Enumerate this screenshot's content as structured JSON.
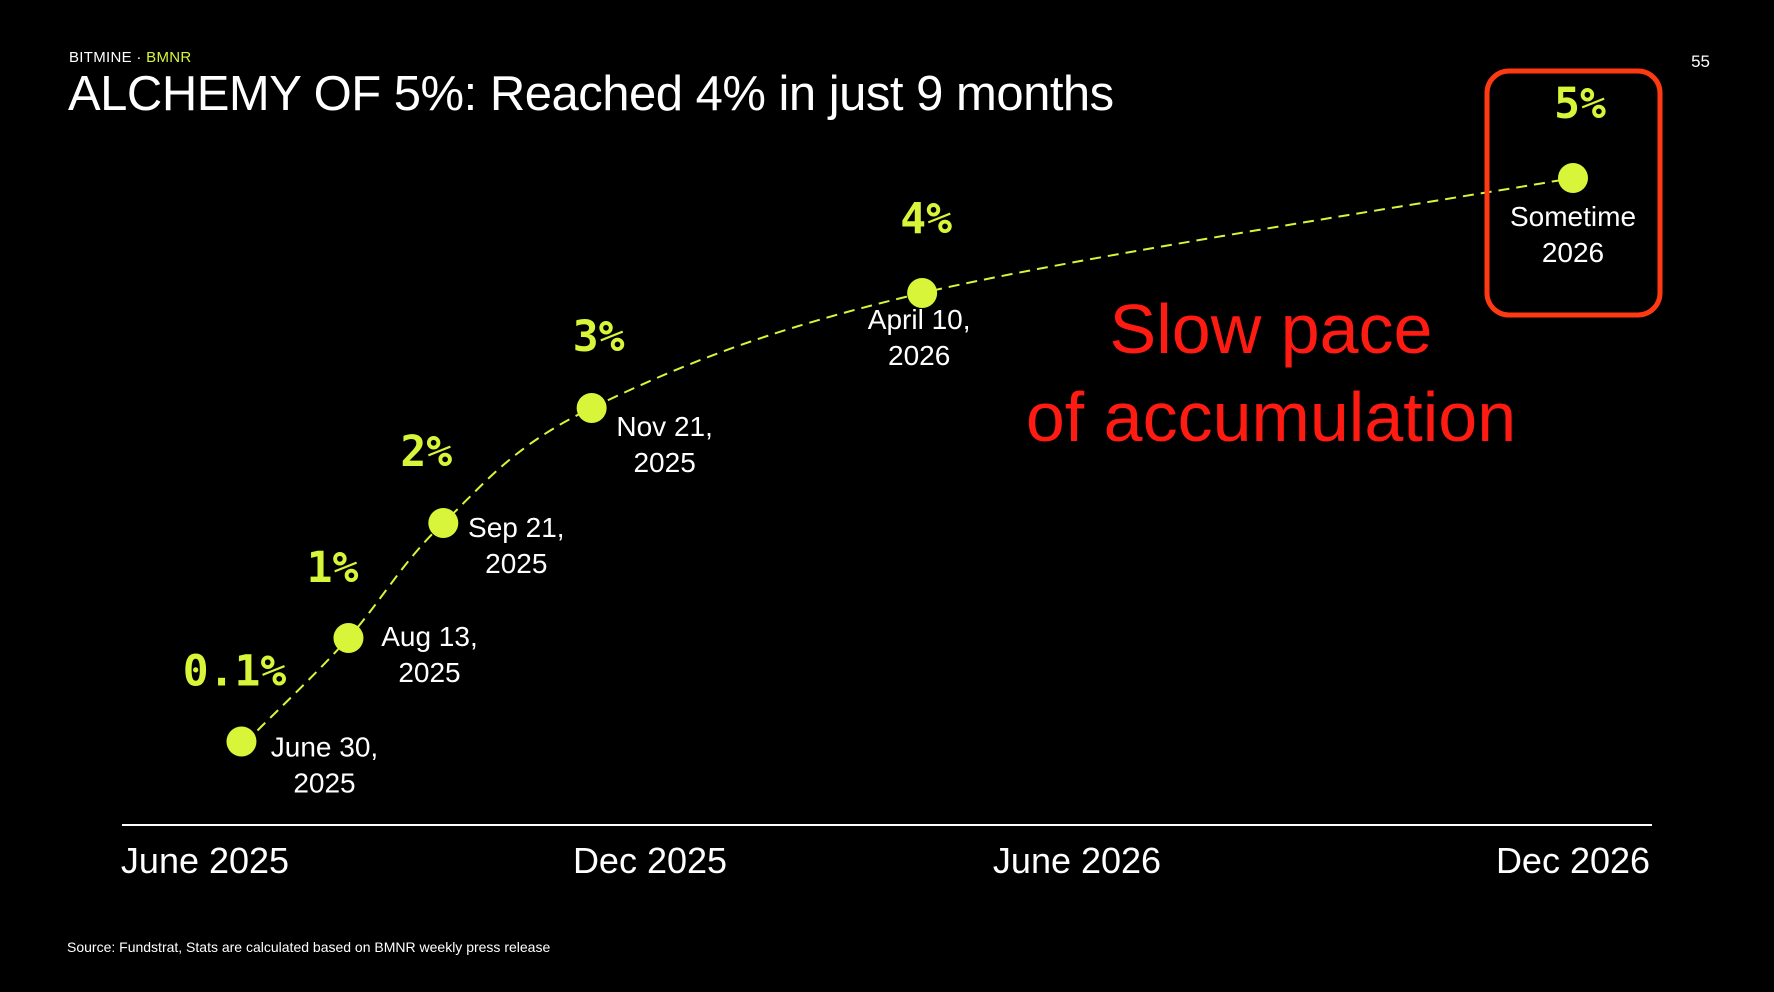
{
  "header": {
    "brand": "BITMINE",
    "separator": " · ",
    "ticker": "BMNR",
    "page_number": "55",
    "title": "ALCHEMY OF 5%: Reached 4% in just 9 months"
  },
  "footer": {
    "source": "Source: Fundstrat, Stats are calculated based on BMNR weekly press release"
  },
  "colors": {
    "background": "#000000",
    "accent": "#d8f53a",
    "annotation": "#ff1a12",
    "highlight_box": "#ff3a12",
    "text": "#ffffff"
  },
  "chart_data": {
    "type": "line",
    "x_axis": {
      "type": "date",
      "range": [
        "2025-05-15",
        "2026-12-31"
      ],
      "ticks": [
        {
          "label": "June 2025",
          "date": "2025-06-15"
        },
        {
          "label": "Dec 2025",
          "date": "2025-12-15"
        },
        {
          "label": "June 2026",
          "date": "2026-06-15"
        },
        {
          "label": "Dec 2026",
          "date": "2026-12-15"
        }
      ]
    },
    "series": [
      {
        "style": "dashed line with dot markers",
        "points": [
          {
            "date": "2025-06-30",
            "value": 0.1,
            "pct_label": "0.1%",
            "date_lines": [
              "June 30,",
              "2025"
            ]
          },
          {
            "date": "2025-08-13",
            "value": 1,
            "pct_label": "1%",
            "date_lines": [
              "Aug 13,",
              "2025"
            ]
          },
          {
            "date": "2025-09-21",
            "value": 2,
            "pct_label": "2%",
            "date_lines": [
              "Sep 21,",
              "2025"
            ]
          },
          {
            "date": "2025-11-21",
            "value": 3,
            "pct_label": "3%",
            "date_lines": [
              "Nov 21,",
              "2025"
            ]
          },
          {
            "date": "2026-04-10",
            "value": 4,
            "pct_label": "4%",
            "date_lines": [
              "April 10,",
              "2026"
            ]
          },
          {
            "date": "2026-12-15",
            "value": 5,
            "pct_label": "5%",
            "date_lines": [
              "Sometime",
              "2026"
            ],
            "highlighted": true
          }
        ]
      }
    ],
    "annotation": {
      "lines": [
        "Slow pace",
        "of accumulation"
      ]
    },
    "grid": false,
    "legend": "none"
  }
}
